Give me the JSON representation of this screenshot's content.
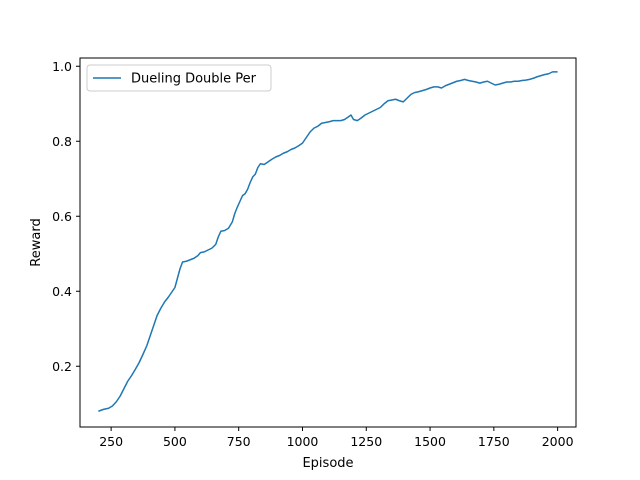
{
  "chart_data": {
    "type": "line",
    "title": "",
    "xlabel": "Episode",
    "ylabel": "Reward",
    "xlim": [
      128,
      2072
    ],
    "ylim": [
      0.038,
      1.022
    ],
    "xticks": [
      250,
      500,
      750,
      1000,
      1250,
      1500,
      1750,
      2000
    ],
    "xtick_labels": [
      "250",
      "500",
      "750",
      "1000",
      "1250",
      "1500",
      "1750",
      "2000"
    ],
    "yticks": [
      0.2,
      0.4,
      0.6,
      0.8,
      1.0
    ],
    "ytick_labels": [
      "0.2",
      "0.4",
      "0.6",
      "0.8",
      "1.0"
    ],
    "grid": false,
    "legend_position": "top-left",
    "series": [
      {
        "name": "Dueling Double Per",
        "color": "#1f77b4",
        "x": [
          200,
          220,
          240,
          255,
          270,
          285,
          300,
          315,
          330,
          345,
          360,
          375,
          390,
          400,
          415,
          430,
          445,
          460,
          475,
          490,
          500,
          510,
          520,
          530,
          545,
          560,
          575,
          590,
          600,
          615,
          630,
          645,
          660,
          670,
          680,
          695,
          710,
          725,
          735,
          745,
          755,
          765,
          775,
          785,
          795,
          805,
          815,
          825,
          835,
          850,
          865,
          880,
          895,
          910,
          925,
          940,
          955,
          970,
          985,
          1000,
          1015,
          1030,
          1045,
          1060,
          1075,
          1090,
          1105,
          1120,
          1135,
          1150,
          1165,
          1180,
          1190,
          1200,
          1215,
          1230,
          1245,
          1260,
          1275,
          1290,
          1305,
          1320,
          1335,
          1350,
          1365,
          1380,
          1395,
          1410,
          1425,
          1440,
          1455,
          1470,
          1485,
          1500,
          1515,
          1530,
          1545,
          1560,
          1575,
          1590,
          1605,
          1620,
          1635,
          1650,
          1665,
          1680,
          1695,
          1710,
          1725,
          1740,
          1755,
          1770,
          1785,
          1800,
          1815,
          1830,
          1845,
          1860,
          1875,
          1890,
          1905,
          1920,
          1935,
          1950,
          1965,
          1980,
          2000
        ],
        "y": [
          0.08,
          0.085,
          0.088,
          0.094,
          0.105,
          0.12,
          0.14,
          0.16,
          0.175,
          0.192,
          0.21,
          0.232,
          0.255,
          0.275,
          0.305,
          0.335,
          0.355,
          0.372,
          0.385,
          0.4,
          0.41,
          0.435,
          0.46,
          0.478,
          0.48,
          0.484,
          0.488,
          0.495,
          0.503,
          0.505,
          0.51,
          0.515,
          0.525,
          0.545,
          0.56,
          0.562,
          0.568,
          0.585,
          0.608,
          0.625,
          0.64,
          0.655,
          0.66,
          0.672,
          0.69,
          0.705,
          0.712,
          0.73,
          0.74,
          0.738,
          0.745,
          0.752,
          0.758,
          0.762,
          0.768,
          0.772,
          0.778,
          0.782,
          0.788,
          0.795,
          0.81,
          0.825,
          0.835,
          0.84,
          0.848,
          0.85,
          0.852,
          0.855,
          0.855,
          0.855,
          0.858,
          0.865,
          0.87,
          0.858,
          0.855,
          0.862,
          0.87,
          0.875,
          0.88,
          0.885,
          0.89,
          0.9,
          0.908,
          0.91,
          0.912,
          0.908,
          0.905,
          0.915,
          0.925,
          0.93,
          0.932,
          0.935,
          0.938,
          0.942,
          0.945,
          0.945,
          0.942,
          0.948,
          0.952,
          0.956,
          0.96,
          0.962,
          0.965,
          0.962,
          0.96,
          0.958,
          0.955,
          0.958,
          0.96,
          0.955,
          0.95,
          0.952,
          0.955,
          0.958,
          0.958,
          0.96,
          0.96,
          0.962,
          0.963,
          0.965,
          0.968,
          0.972,
          0.975,
          0.978,
          0.98,
          0.985,
          0.985
        ]
      }
    ]
  }
}
